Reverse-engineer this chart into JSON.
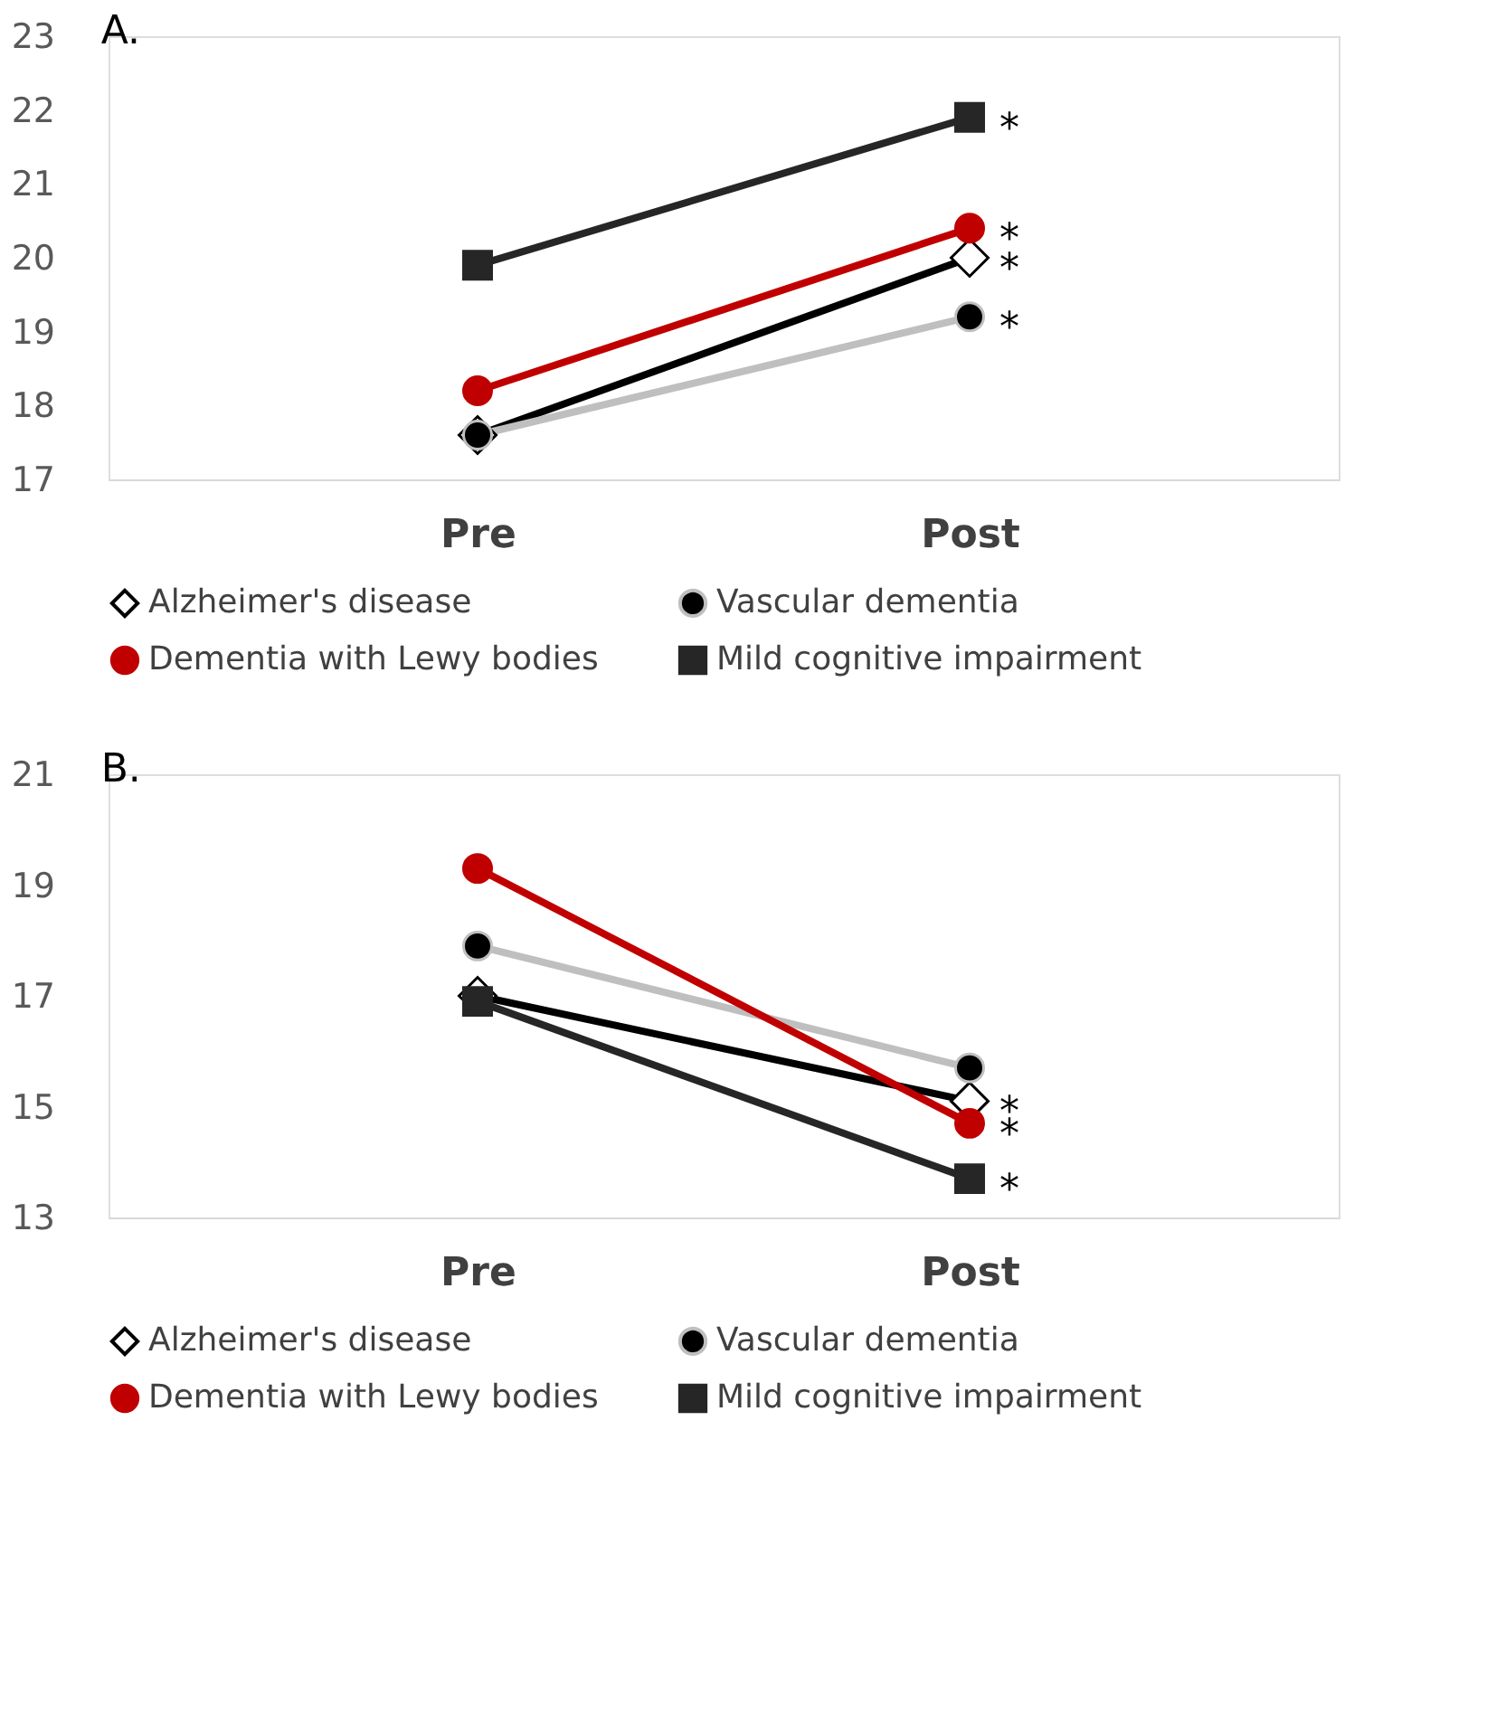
{
  "chart_data": [
    {
      "type": "line",
      "title": "A.",
      "categories": [
        "Pre",
        "Post"
      ],
      "ylim": [
        17,
        23
      ],
      "yticks": [
        17,
        18,
        19,
        20,
        21,
        22,
        23
      ],
      "grid": false,
      "legend": "bottom",
      "series": [
        {
          "name": "Alzheimer's disease",
          "color": "#000000",
          "marker": "diamond",
          "colors": [
            "#ffffff",
            "#ffffff"
          ],
          "values": [
            17.6,
            20.0
          ]
        },
        {
          "name": "Vascular dementia",
          "color": "#bfbfbf",
          "marker": "circle",
          "colors": [
            "#000000",
            "#000000"
          ],
          "values": [
            17.6,
            19.2
          ]
        },
        {
          "name": "Dementia with Lewy bodies",
          "color": "#c00000",
          "marker": "circle",
          "colors": [
            "#c00000",
            "#c00000"
          ],
          "values": [
            18.2,
            20.4
          ]
        },
        {
          "name": "Mild cognitive impairment",
          "color": "#262626",
          "marker": "square",
          "colors": [
            "#262626",
            "#262626"
          ],
          "values": [
            19.9,
            21.9
          ]
        }
      ],
      "annotations": [
        {
          "text": "*",
          "x": "Post",
          "y": 21.9
        },
        {
          "text": "*",
          "x": "Post",
          "y": 20.4
        },
        {
          "text": "*",
          "x": "Post",
          "y": 20.0
        },
        {
          "text": "*",
          "x": "Post",
          "y": 19.2
        }
      ]
    },
    {
      "type": "line",
      "title": "B.",
      "categories": [
        "Pre",
        "Post"
      ],
      "ylim": [
        13,
        21
      ],
      "yticks": [
        13,
        15,
        17,
        19,
        21
      ],
      "grid": false,
      "legend": "bottom",
      "series": [
        {
          "name": "Alzheimer's disease",
          "color": "#000000",
          "marker": "diamond",
          "colors": [
            "#ffffff",
            "#ffffff"
          ],
          "values": [
            17.0,
            15.1
          ]
        },
        {
          "name": "Vascular dementia",
          "color": "#bfbfbf",
          "marker": "circle",
          "colors": [
            "#000000",
            "#000000"
          ],
          "values": [
            17.9,
            15.7
          ]
        },
        {
          "name": "Dementia with Lewy bodies",
          "color": "#c00000",
          "marker": "circle",
          "colors": [
            "#c00000",
            "#c00000"
          ],
          "values": [
            19.3,
            14.7
          ]
        },
        {
          "name": "Mild cognitive impairment",
          "color": "#262626",
          "marker": "square",
          "colors": [
            "#262626",
            "#262626"
          ],
          "values": [
            16.9,
            13.7
          ]
        }
      ],
      "annotations": [
        {
          "text": "*",
          "x": "Post",
          "y": 15.1
        },
        {
          "text": "*",
          "x": "Post",
          "y": 14.7
        },
        {
          "text": "*",
          "x": "Post",
          "y": 13.7
        }
      ]
    }
  ]
}
